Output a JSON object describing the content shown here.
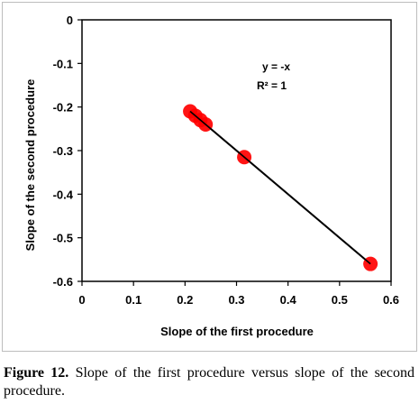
{
  "chart_data": {
    "type": "scatter",
    "xlabel": "Slope of the first procedure",
    "ylabel": "Slope of the second procedure",
    "xlim": [
      0,
      0.6
    ],
    "ylim": [
      -0.6,
      0
    ],
    "x_ticks": [
      "0",
      "0.1",
      "0.2",
      "0.3",
      "0.4",
      "0.5",
      "0.6"
    ],
    "y_ticks": [
      "0",
      "-0.1",
      "-0.2",
      "-0.3",
      "-0.4",
      "-0.5",
      "-0.6"
    ],
    "points": [
      {
        "x": 0.21,
        "y": -0.21
      },
      {
        "x": 0.22,
        "y": -0.22
      },
      {
        "x": 0.23,
        "y": -0.23
      },
      {
        "x": 0.24,
        "y": -0.24
      },
      {
        "x": 0.315,
        "y": -0.315
      },
      {
        "x": 0.56,
        "y": -0.56
      }
    ],
    "trendline": {
      "x": [
        0.21,
        0.56
      ],
      "y": [
        -0.21,
        -0.56
      ]
    },
    "equation": "y = -x",
    "r_squared": "R² = 1",
    "grid": false,
    "legend": "none",
    "marker_color": "#ff0000",
    "line_color": "#000000"
  },
  "caption": {
    "label": "Figure 12.",
    "text": " Slope of the first procedure versus slope of the second procedure."
  }
}
